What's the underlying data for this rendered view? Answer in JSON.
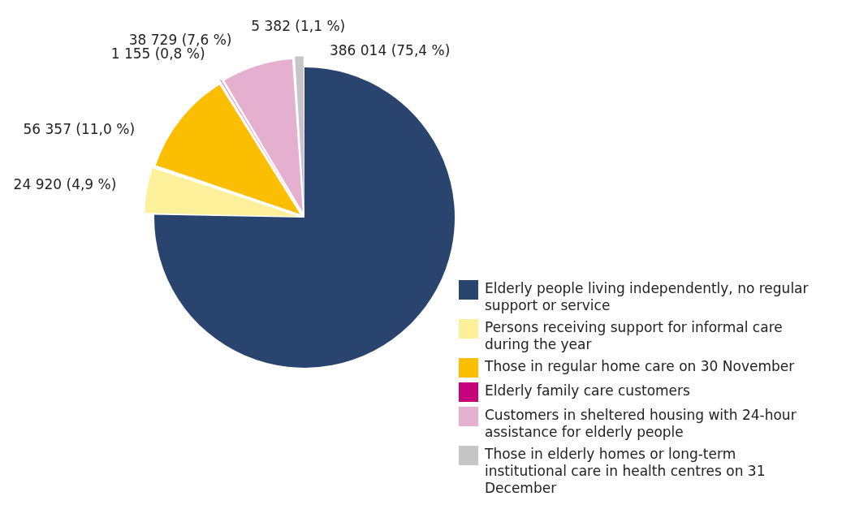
{
  "chart_data": {
    "type": "pie",
    "categories": [
      "Elderly people living independently, no regular support or service",
      "Persons receiving support for informal care during the year",
      "Those in regular home care on 30 November",
      "Elderly family care customers",
      "Customers in sheltered housing with 24-hour assistance for elderly people",
      "Those in elderly homes or long-term institutional care in health centres on 31 December"
    ],
    "values": [
      386014,
      24920,
      56357,
      1155,
      38729,
      5382
    ],
    "value_labels": [
      "386 014 (75,4 %)",
      "24 920 (4,9 %)",
      "56 357 (11,0 %)",
      "1 155 (0,8 %)",
      "38 729 (7,6 %)",
      "5 382 (1,1 %)"
    ],
    "colors": [
      "#29446f",
      "#fdf09a",
      "#fbbe00",
      "#c4007a",
      "#e5b0cf",
      "#c6c6c6"
    ],
    "legend": "bottom right"
  }
}
